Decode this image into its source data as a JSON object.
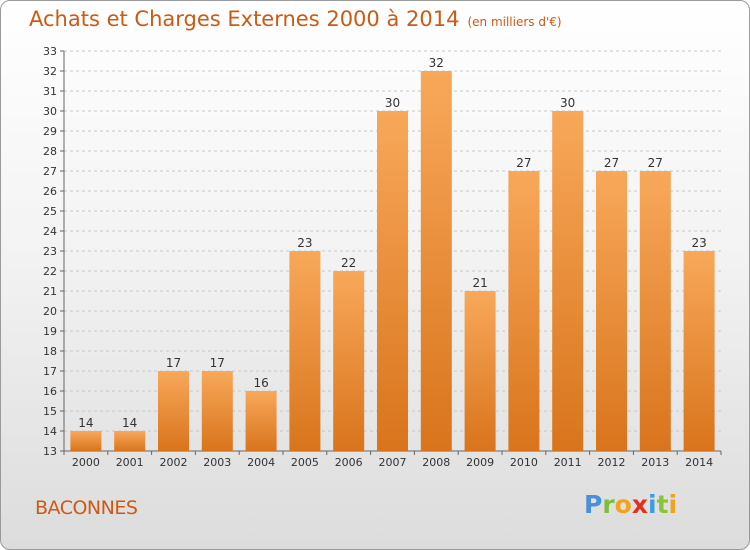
{
  "header": {
    "title": "Achats et Charges Externes 2000 à 2014",
    "unit": "(en milliers d'€)"
  },
  "footer": {
    "commune": "BACONNES",
    "logo": "Proxiti"
  },
  "colors": {
    "bar_light": "#f8a85a",
    "bar_dark": "#d9741c",
    "title": "#cc5a14",
    "grid": "#c8c8c8"
  },
  "chart_data": {
    "type": "bar",
    "title": "Achats et Charges Externes 2000 à 2014",
    "subtitle": "(en milliers d'€)",
    "xlabel": "",
    "ylabel": "",
    "categories": [
      "2000",
      "2001",
      "2002",
      "2003",
      "2004",
      "2005",
      "2006",
      "2007",
      "2008",
      "2009",
      "2010",
      "2011",
      "2012",
      "2013",
      "2014"
    ],
    "values": [
      14,
      14,
      17,
      17,
      16,
      23,
      22,
      30,
      32,
      21,
      27,
      30,
      27,
      27,
      23
    ],
    "ylim": [
      13,
      33
    ],
    "yticks": [
      13,
      14,
      15,
      16,
      17,
      18,
      19,
      20,
      21,
      22,
      23,
      24,
      25,
      26,
      27,
      28,
      29,
      30,
      31,
      32,
      33
    ],
    "grid": true,
    "legend": "none"
  }
}
